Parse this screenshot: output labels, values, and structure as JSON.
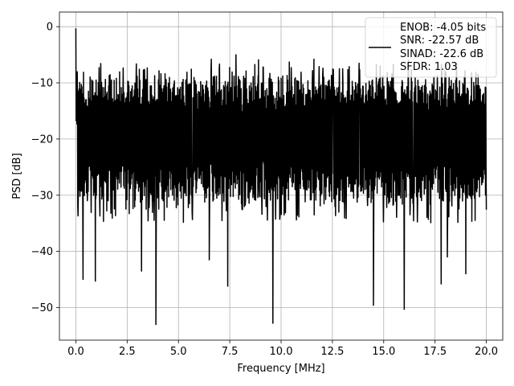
{
  "chart_data": {
    "type": "line",
    "xlabel": "Frequency [MHz]",
    "ylabel": "PSD [dB]",
    "xlim": [
      -0.8,
      20.8
    ],
    "ylim": [
      -55.8,
      2.6
    ],
    "xticks": [
      0.0,
      2.5,
      5.0,
      7.5,
      10.0,
      12.5,
      15.0,
      17.5,
      20.0
    ],
    "xtick_labels": [
      "0.0",
      "2.5",
      "5.0",
      "7.5",
      "10.0",
      "12.5",
      "15.0",
      "17.5",
      "20.0"
    ],
    "yticks": [
      0,
      -10,
      -20,
      -30,
      -40,
      -50
    ],
    "ytick_labels": [
      "0",
      "−10",
      "−20",
      "−30",
      "−40",
      "−50"
    ],
    "grid": true,
    "legend": {
      "placement": "top-right",
      "lines": [
        "ENOB: -4.05 bits",
        "SNR: -22.57 dB",
        "SINAD: -22.6 dB",
        "SFDR: 1.03"
      ]
    },
    "series": [
      {
        "color": "#000000",
        "x_start": 0.0,
        "x_end": 20.0,
        "baseline_upper": -11.0,
        "baseline_lower": -26.0,
        "peak_x": 0.0,
        "peak_y": -0.3,
        "deep_dips": [
          {
            "x": 0.35,
            "y": -45.0
          },
          {
            "x": 0.95,
            "y": -45.3
          },
          {
            "x": 3.2,
            "y": -43.5
          },
          {
            "x": 3.9,
            "y": -53.0
          },
          {
            "x": 6.5,
            "y": -41.5
          },
          {
            "x": 7.4,
            "y": -46.2
          },
          {
            "x": 9.6,
            "y": -52.8
          },
          {
            "x": 14.5,
            "y": -49.6
          },
          {
            "x": 16.0,
            "y": -50.3
          },
          {
            "x": 17.8,
            "y": -45.8
          },
          {
            "x": 18.1,
            "y": -41.0
          },
          {
            "x": 19.0,
            "y": -44.0
          }
        ],
        "high_peaks": [
          {
            "x": 6.6,
            "y": -5.8
          },
          {
            "x": 7.8,
            "y": -5.0
          },
          {
            "x": 8.9,
            "y": -5.9
          },
          {
            "x": 10.4,
            "y": -6.3
          },
          {
            "x": 11.6,
            "y": -5.8
          },
          {
            "x": 13.8,
            "y": -6.5
          },
          {
            "x": 16.2,
            "y": -6.0
          }
        ]
      }
    ]
  }
}
